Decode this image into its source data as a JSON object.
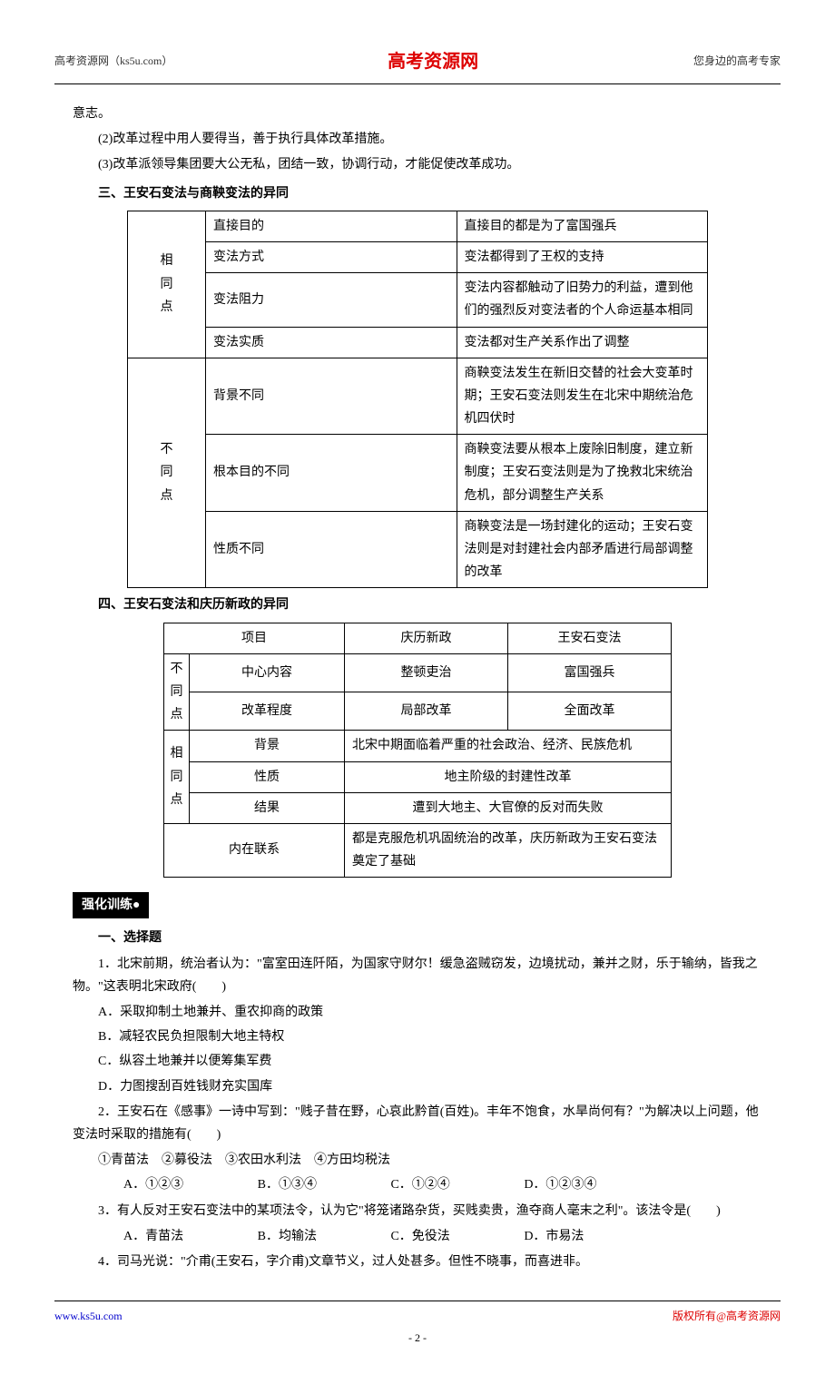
{
  "header": {
    "left": "高考资源网（ks5u.com）",
    "center": "高考资源网",
    "right": "您身边的高考专家"
  },
  "intro": {
    "p0": "意志。",
    "p1": "(2)改革过程中用人要得当，善于执行具体改革措施。",
    "p2": "(3)改革派领导集团要大公无私，团结一致，协调行动，才能促使改革成功。"
  },
  "section3": {
    "title": "三、王安石变法与商鞅变法的异同",
    "table": {
      "rows": [
        {
          "group": "相同点",
          "item": "直接目的",
          "content": "直接目的都是为了富国强兵"
        },
        {
          "group": "相同点",
          "item": "变法方式",
          "content": "变法都得到了王权的支持"
        },
        {
          "group": "相同点",
          "item": "变法阻力",
          "content": "变法内容都触动了旧势力的利益，遭到他们的强烈反对变法者的个人命运基本相同"
        },
        {
          "group": "相同点",
          "item": "变法实质",
          "content": "变法都对生产关系作出了调整"
        },
        {
          "group": "不同点",
          "item": "背景不同",
          "content": "商鞅变法发生在新旧交替的社会大变革时期；王安石变法则发生在北宋中期统治危机四伏时"
        },
        {
          "group": "不同点",
          "item": "根本目的不同",
          "content": "商鞅变法要从根本上废除旧制度，建立新制度；王安石变法则是为了挽救北宋统治危机，部分调整生产关系"
        },
        {
          "group": "不同点",
          "item": "性质不同",
          "content": "商鞅变法是一场封建化的运动；王安石变法则是对封建社会内部矛盾进行局部调整的改革"
        }
      ]
    }
  },
  "section4": {
    "title": "四、王安石变法和庆历新政的异同",
    "table": {
      "hdr": {
        "c1": "项目",
        "c2": "庆历新政",
        "c3": "王安石变法"
      },
      "diff_label": "不同点",
      "same_label": "相同点",
      "rows": {
        "r1": {
          "item": "中心内容",
          "a": "整顿吏治",
          "b": "富国强兵"
        },
        "r2": {
          "item": "改革程度",
          "a": "局部改革",
          "b": "全面改革"
        },
        "r3": {
          "item": "背景",
          "c": "北宋中期面临着严重的社会政治、经济、民族危机"
        },
        "r4": {
          "item": "性质",
          "c": "地主阶级的封建性改革"
        },
        "r5": {
          "item": "结果",
          "c": "遭到大地主、大官僚的反对而失败"
        },
        "r6": {
          "item": "内在联系",
          "c": "都是克服危机巩固统治的改革，庆历新政为王安石变法奠定了基础"
        }
      }
    }
  },
  "practice": {
    "banner": "强化训练●",
    "sec_title": "一、选择题",
    "q1": {
      "stem": "1．北宋前期，统治者认为：\"富室田连阡陌，为国家守财尔！缓急盗贼窃发，边境扰动，兼并之财，乐于输纳，皆我之物。\"这表明北宋政府(　　)",
      "a": "A．采取抑制土地兼并、重农抑商的政策",
      "b": "B．减轻农民负担限制大地主特权",
      "c": "C．纵容土地兼并以便筹集军费",
      "d": "D．力图搜刮百姓钱财充实国库"
    },
    "q2": {
      "stem": "2．王安石在《感事》一诗中写到：\"贱子昔在野，心哀此黔首(百姓)。丰年不饱食，水旱尚何有？\"为解决以上问题，他变法时采取的措施有(　　)",
      "opts_line": "①青苗法　②募役法　③农田水利法　④方田均税法",
      "a": "A．①②③",
      "b": "B．①③④",
      "c": "C．①②④",
      "d": "D．①②③④"
    },
    "q3": {
      "stem": "3．有人反对王安石变法中的某项法令，认为它\"将笼诸路杂货，买贱卖贵，渔夺商人毫末之利\"。该法令是(　　)",
      "a": "A．青苗法",
      "b": "B．均输法",
      "c": "C．免役法",
      "d": "D．市易法"
    },
    "q4": {
      "stem": "4．司马光说：\"介甫(王安石，字介甫)文章节义，过人处甚多。但性不晓事，而喜进非。"
    }
  },
  "footer": {
    "left": "www.ks5u.com",
    "right": "版权所有@高考资源网",
    "page": "- 2 -"
  }
}
